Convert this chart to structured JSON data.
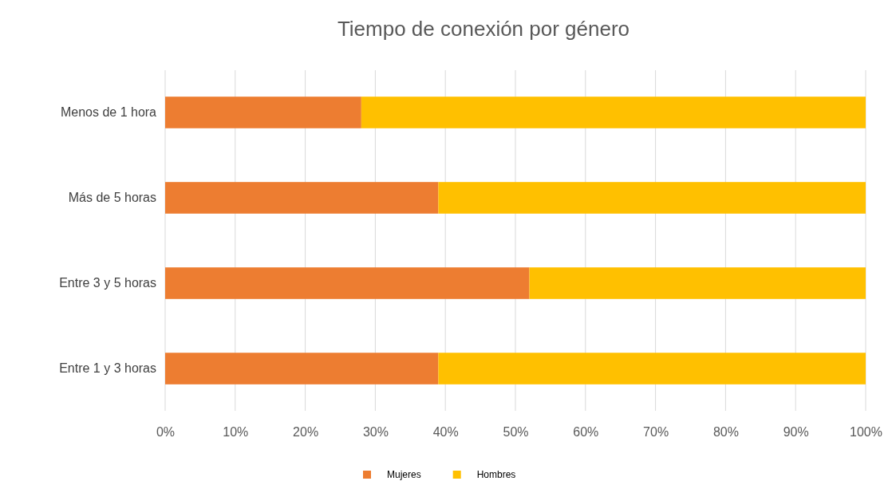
{
  "chart_data": {
    "type": "bar",
    "orientation": "horizontal",
    "stacked": true,
    "title": "Tiempo de conexión por género",
    "categories": [
      "Menos de 1 hora",
      "Más de 5 horas",
      "Entre 3 y 5 horas",
      "Entre 1 y 3 horas"
    ],
    "series": [
      {
        "name": "Mujeres",
        "color": "#ed7d31",
        "values": [
          28,
          39,
          52,
          39
        ]
      },
      {
        "name": "Hombres",
        "color": "#ffc000",
        "values": [
          72,
          61,
          48,
          61
        ]
      }
    ],
    "xlim": [
      0,
      100
    ],
    "xticks": [
      {
        "value": 0,
        "label": "0%"
      },
      {
        "value": 10,
        "label": "10%"
      },
      {
        "value": 20,
        "label": "20%"
      },
      {
        "value": 30,
        "label": "30%"
      },
      {
        "value": 40,
        "label": "40%"
      },
      {
        "value": 50,
        "label": "50%"
      },
      {
        "value": 60,
        "label": "60%"
      },
      {
        "value": 70,
        "label": "70%"
      },
      {
        "value": 80,
        "label": "80%"
      },
      {
        "value": 90,
        "label": "90%"
      },
      {
        "value": 100,
        "label": "100%"
      }
    ],
    "grid": "x",
    "legend": "bottom"
  }
}
